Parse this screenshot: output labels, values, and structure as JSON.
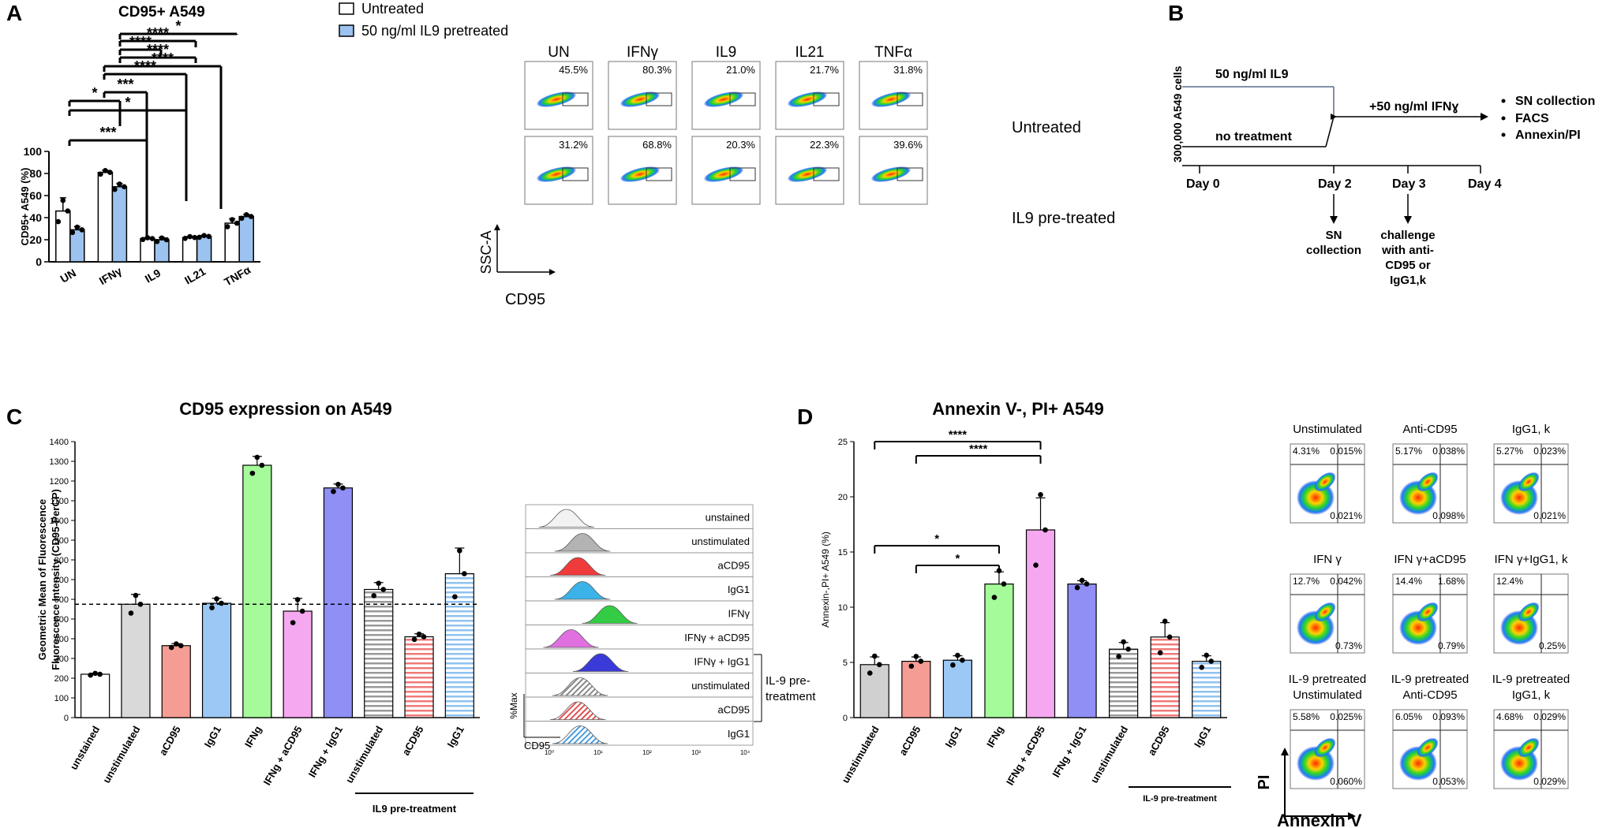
{
  "panel_labels": {
    "a": "A",
    "b": "B",
    "c": "C",
    "d": "D"
  },
  "panel_a": {
    "legend": {
      "untreated": "Untreated",
      "pretreated": "50 ng/ml IL9 pretreated"
    },
    "flow": {
      "columns": [
        "UN",
        "IFNγ",
        "IL9",
        "IL21",
        "TNFα"
      ],
      "row_labels": [
        "Untreated",
        "IL9 pre-treated"
      ],
      "untreated_pct": [
        "45.5%",
        "80.3%",
        "21.0%",
        "21.7%",
        "31.8%"
      ],
      "pretreated_pct": [
        "31.2%",
        "68.8%",
        "20.3%",
        "22.3%",
        "39.6%"
      ],
      "y_axis": "SSC-A",
      "x_axis": "CD95"
    }
  },
  "panel_b": {
    "cells": "300,000 A549 cells",
    "il9": "50 ng/ml IL9",
    "no_treatment": "no treatment",
    "ifn": "+50 ng/ml IFNɣ",
    "bullets": [
      "SN collection",
      "FACS",
      "Annexin/PI"
    ],
    "days": [
      "Day 0",
      "Day 2",
      "Day 3",
      "Day 4"
    ],
    "day2_note": [
      "SN",
      "collection"
    ],
    "day3_note": [
      "challenge",
      "with anti-",
      "CD95 or",
      "IgG1,k"
    ]
  },
  "panel_c": {
    "hist": {
      "labels": [
        "unstained",
        "unstimulated",
        "aCD95",
        "IgG1",
        "IFNγ",
        "IFNγ + aCD95",
        "IFNγ + IgG1",
        "unstimulated",
        "aCD95",
        "IgG1"
      ],
      "colors": [
        "#f2f2f2",
        "#b3b3b3",
        "#ef3b3b",
        "#3bb3e8",
        "#33cc44",
        "#e070e0",
        "#3a3ad8",
        "#999999",
        "#e05050",
        "#6aaee0"
      ],
      "bracket": [
        "IL-9 pre-",
        "treatment"
      ],
      "ylabel": "%Max",
      "xlabel": "CD95",
      "ticks": [
        "10⁰",
        "10¹",
        "10²",
        "10³",
        "10⁴"
      ]
    }
  },
  "panel_d": {
    "flow": {
      "titles": [
        [
          "Unstimulated"
        ],
        [
          "Anti-CD95"
        ],
        [
          "IgG1, k"
        ],
        [
          "IFN γ"
        ],
        [
          "IFN γ+aCD95"
        ],
        [
          "IFN γ+IgG1, k"
        ],
        [
          "IL-9 pretreated",
          "Unstimulated"
        ],
        [
          "IL-9 pretreated",
          "Anti-CD95"
        ],
        [
          "IL-9 pretreated",
          "IgG1, k"
        ]
      ],
      "q_tl": [
        "4.31%",
        "5.17%",
        "5.27%",
        "12.7%",
        "14.4%",
        "12.4%",
        "5.58%",
        "6.05%",
        "4.68%"
      ],
      "q_tr": [
        "0.015%",
        "0.038%",
        "0.023%",
        "0.042%",
        "1.68%",
        "",
        "0.025%",
        "0.093%",
        "0.029%"
      ],
      "q_br": [
        "0.021%",
        "0.098%",
        "0.021%",
        "0.73%",
        "0.79%",
        "0.25%",
        "0.060%",
        "0.053%",
        "0.029%"
      ],
      "y_axis": "PI",
      "x_axis": "Annexin V"
    }
  },
  "chart_data": [
    {
      "type": "bar",
      "title": "CD95+ A549",
      "categories": [
        "UN",
        "IFNγ",
        "IL9",
        "IL21",
        "TNFα"
      ],
      "series": [
        {
          "name": "Untreated",
          "values": [
            46,
            81,
            21,
            22,
            35
          ],
          "errors": [
            12,
            2,
            1,
            1,
            4
          ]
        },
        {
          "name": "50 ng/ml IL9 pretreated",
          "values": [
            29,
            68,
            20,
            23,
            41
          ],
          "errors": [
            3,
            3,
            2,
            1,
            2
          ]
        }
      ],
      "ylabel": "CD95+ A549 (%)",
      "ylim": [
        0,
        100
      ],
      "yticks": [
        "0",
        "20",
        "40",
        "60",
        "80",
        "100"
      ],
      "significance": [
        "*",
        "****",
        "****",
        "****",
        "****",
        "****",
        "***",
        "*",
        "*",
        "***"
      ]
    },
    {
      "type": "bar",
      "title": "CD95 expression on A549",
      "categories": [
        "unstained",
        "unstimulated",
        "aCD95",
        "IgG1",
        "IFNg",
        "IFNg + aCD95",
        "IFNg + IgG1",
        "unstimulated",
        "aCD95",
        "IgG1"
      ],
      "values": [
        220,
        575,
        365,
        580,
        1280,
        540,
        1165,
        650,
        410,
        730
      ],
      "errors": [
        5,
        50,
        10,
        25,
        45,
        65,
        20,
        35,
        15,
        130
      ],
      "reference_line": 575,
      "ylabel": "Geometric Mean of Fluorescence Intensity (CD95-PerCP)",
      "ylim": [
        0,
        1400
      ],
      "yticks": [
        "0",
        "100",
        "200",
        "300",
        "400",
        "500",
        "600",
        "700",
        "800",
        "900",
        "1000",
        "1100",
        "1200",
        "1300",
        "1400"
      ],
      "group_label": "IL9 pre-treatment"
    },
    {
      "type": "bar",
      "title": "Annexin V-, PI+ A549",
      "categories": [
        "unstimulated",
        "aCD95",
        "IgG1",
        "IFNg",
        "IFNg + aCD95",
        "IFNg + IgG1",
        "unstimulated",
        "aCD95",
        "IgG1"
      ],
      "values": [
        4.8,
        5.1,
        5.2,
        12.1,
        17.0,
        12.1,
        6.2,
        7.3,
        5.1
      ],
      "errors": [
        0.7,
        0.4,
        0.4,
        1.1,
        2.9,
        0.3,
        0.6,
        1.3,
        0.5
      ],
      "ylabel": "Annexin-,PI+ A549 (%)",
      "ylim": [
        0,
        25
      ],
      "yticks": [
        "0",
        "5",
        "10",
        "15",
        "20",
        "25"
      ],
      "significance": [
        "****",
        "****",
        "*",
        "*"
      ],
      "group_label": "IL-9 pre-treatment"
    }
  ]
}
